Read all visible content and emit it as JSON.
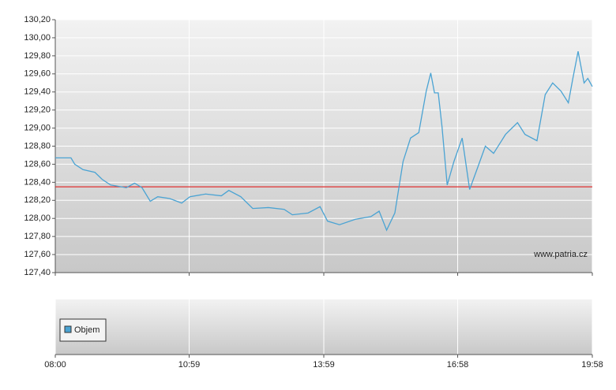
{
  "chart_data": {
    "type": "line",
    "x": [
      480,
      501,
      506,
      517,
      533,
      543,
      554,
      575,
      586,
      596,
      607,
      617,
      633,
      649,
      660,
      681,
      702,
      712,
      728,
      744,
      765,
      786,
      797,
      818,
      834,
      844,
      860,
      881,
      902,
      913,
      923,
      934,
      945,
      955,
      966,
      976,
      982,
      987,
      992,
      997,
      1004,
      1013,
      1024,
      1034,
      1045,
      1055,
      1066,
      1082,
      1098,
      1108,
      1124,
      1135,
      1145,
      1156,
      1166,
      1172,
      1179,
      1187,
      1192,
      1198
    ],
    "series": [
      {
        "color": "#4aa3d3",
        "values": [
          128.67,
          128.67,
          128.6,
          128.54,
          128.51,
          128.43,
          128.37,
          128.34,
          128.39,
          128.34,
          128.19,
          128.24,
          128.22,
          128.17,
          128.24,
          128.27,
          128.25,
          128.31,
          128.24,
          128.11,
          128.12,
          128.1,
          128.04,
          128.06,
          128.13,
          127.97,
          127.93,
          127.99,
          128.02,
          128.08,
          127.87,
          128.06,
          128.63,
          128.89,
          128.95,
          129.41,
          129.61,
          129.39,
          129.39,
          129.02,
          128.37,
          128.63,
          128.89,
          128.32,
          128.57,
          128.8,
          128.72,
          128.93,
          129.06,
          128.93,
          128.86,
          129.37,
          129.5,
          129.41,
          129.28,
          129.55,
          129.85,
          129.5,
          129.55,
          129.46
        ]
      }
    ],
    "reference_line": {
      "value": 128.35,
      "color": "#e03030"
    },
    "ylim": [
      127.4,
      130.2
    ],
    "yticks": [
      {
        "value": 127.4,
        "label": "127,40"
      },
      {
        "value": 127.6,
        "label": "127,60"
      },
      {
        "value": 127.8,
        "label": "127,80"
      },
      {
        "value": 128.0,
        "label": "128,00"
      },
      {
        "value": 128.2,
        "label": "128,20"
      },
      {
        "value": 128.4,
        "label": "128,40"
      },
      {
        "value": 128.6,
        "label": "128,60"
      },
      {
        "value": 128.8,
        "label": "128,80"
      },
      {
        "value": 129.0,
        "label": "129,00"
      },
      {
        "value": 129.2,
        "label": "129,20"
      },
      {
        "value": 129.4,
        "label": "129,40"
      },
      {
        "value": 129.6,
        "label": "129,60"
      },
      {
        "value": 129.8,
        "label": "129,80"
      },
      {
        "value": 130.0,
        "label": "130,00"
      },
      {
        "value": 130.2,
        "label": "130,20"
      }
    ],
    "xlim": [
      480,
      1198
    ],
    "xticks": [
      {
        "value": 480,
        "label": "08:00"
      },
      {
        "value": 659,
        "label": "10:59"
      },
      {
        "value": 839,
        "label": "13:59"
      },
      {
        "value": 1018,
        "label": "16:58"
      },
      {
        "value": 1198,
        "label": "19:58"
      }
    ],
    "grid": true,
    "watermark": "www.patria.cz",
    "volume_legend": {
      "label": "Objem",
      "color": "#4aa3d3"
    }
  }
}
